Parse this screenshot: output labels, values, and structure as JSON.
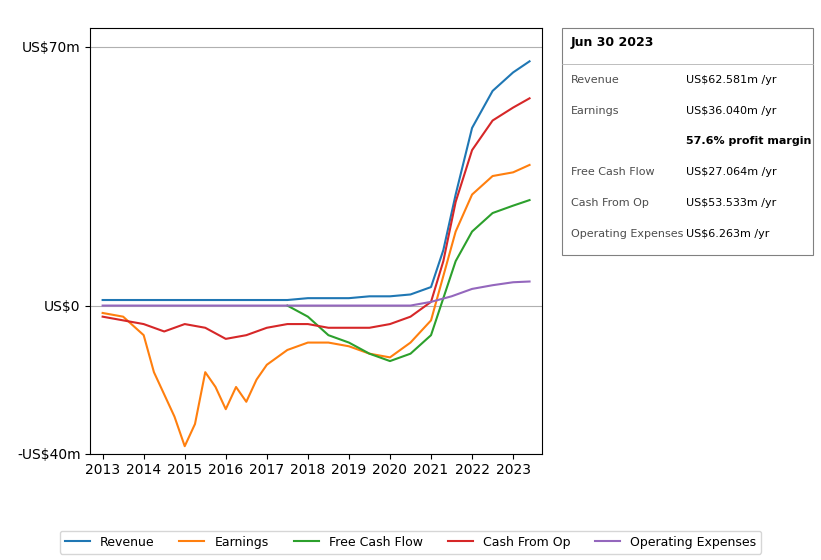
{
  "chart_data": {
    "type": "line",
    "series": [
      {
        "name": "Revenue",
        "x": [
          2013.0,
          2013.5,
          2014.0,
          2014.5,
          2015.0,
          2015.5,
          2016.0,
          2016.5,
          2017.0,
          2017.5,
          2018.0,
          2018.5,
          2019.0,
          2019.5,
          2020.0,
          2020.5,
          2021.0,
          2021.3,
          2021.6,
          2022.0,
          2022.5,
          2023.0,
          2023.4
        ],
        "values": [
          1.5,
          1.5,
          1.5,
          1.5,
          1.5,
          1.5,
          1.5,
          1.5,
          1.5,
          1.5,
          2.0,
          2.0,
          2.0,
          2.5,
          2.5,
          3.0,
          5.0,
          15.0,
          30.0,
          48.0,
          58.0,
          63.0,
          66.0
        ]
      },
      {
        "name": "Earnings",
        "x": [
          2013.0,
          2013.5,
          2014.0,
          2014.25,
          2014.75,
          2015.0,
          2015.25,
          2015.5,
          2015.75,
          2016.0,
          2016.25,
          2016.5,
          2016.75,
          2017.0,
          2017.5,
          2018.0,
          2018.5,
          2019.0,
          2019.5,
          2020.0,
          2020.25,
          2020.5,
          2021.0,
          2021.3,
          2021.6,
          2022.0,
          2022.5,
          2023.0,
          2023.4
        ],
        "values": [
          -2.0,
          -3.0,
          -8.0,
          -18.0,
          -30.0,
          -38.0,
          -32.0,
          -18.0,
          -22.0,
          -28.0,
          -22.0,
          -26.0,
          -20.0,
          -16.0,
          -12.0,
          -10.0,
          -10.0,
          -11.0,
          -13.0,
          -14.0,
          -12.0,
          -10.0,
          -4.0,
          8.0,
          20.0,
          30.0,
          35.0,
          36.0,
          38.0
        ]
      },
      {
        "name": "Free Cash Flow",
        "x": [
          2017.5,
          2018.0,
          2018.5,
          2019.0,
          2019.5,
          2020.0,
          2020.5,
          2021.0,
          2021.3,
          2021.6,
          2022.0,
          2022.5,
          2023.0,
          2023.4
        ],
        "values": [
          0.0,
          -3.0,
          -8.0,
          -10.0,
          -13.0,
          -15.0,
          -13.0,
          -8.0,
          2.0,
          12.0,
          20.0,
          25.0,
          27.0,
          28.5
        ]
      },
      {
        "name": "Cash From Op",
        "x": [
          2013.0,
          2013.5,
          2014.0,
          2014.5,
          2015.0,
          2015.5,
          2016.0,
          2016.5,
          2017.0,
          2017.5,
          2018.0,
          2018.5,
          2019.0,
          2019.5,
          2020.0,
          2020.5,
          2021.0,
          2021.3,
          2021.6,
          2022.0,
          2022.5,
          2023.0,
          2023.4
        ],
        "values": [
          -3.0,
          -4.0,
          -5.0,
          -7.0,
          -5.0,
          -6.0,
          -9.0,
          -8.0,
          -6.0,
          -5.0,
          -5.0,
          -6.0,
          -6.0,
          -6.0,
          -5.0,
          -3.0,
          1.0,
          12.0,
          28.0,
          42.0,
          50.0,
          53.5,
          56.0
        ]
      },
      {
        "name": "Operating Expenses",
        "x": [
          2013.0,
          2014.0,
          2015.0,
          2016.0,
          2017.0,
          2018.0,
          2019.0,
          2020.0,
          2020.5,
          2021.0,
          2021.5,
          2022.0,
          2022.5,
          2023.0,
          2023.4
        ],
        "values": [
          0.0,
          0.0,
          0.0,
          0.0,
          0.0,
          0.0,
          0.0,
          0.0,
          0.0,
          1.0,
          2.5,
          4.5,
          5.5,
          6.3,
          6.5
        ]
      }
    ],
    "xlim": [
      2012.7,
      2023.7
    ],
    "xticks": [
      2013,
      2014,
      2015,
      2016,
      2017,
      2018,
      2019,
      2020,
      2021,
      2022,
      2023
    ],
    "ylim": [
      -40,
      75
    ],
    "yticks": [
      {
        "value": -40,
        "label": "-US$40m"
      },
      {
        "value": 0,
        "label": "US$0"
      },
      {
        "value": 70,
        "label": "US$70m"
      }
    ],
    "grid": "y",
    "legend": "lower center",
    "info_box": {
      "title": "Jun 30 2023",
      "rows": [
        {
          "label": "Revenue",
          "value": "US$62.581m",
          "unit": " /yr"
        },
        {
          "label": "Earnings",
          "value": "US$36.040m",
          "unit": " /yr"
        },
        {
          "value": "57.6%",
          "unit": " profit margin"
        },
        {
          "label": "Free Cash Flow",
          "value": "US$27.064m",
          "unit": " /yr"
        },
        {
          "label": "Cash From Op",
          "value": "US$53.533m",
          "unit": " /yr"
        },
        {
          "label": "Operating Expenses",
          "value": "US$6.263m",
          "unit": " /yr"
        }
      ]
    }
  }
}
